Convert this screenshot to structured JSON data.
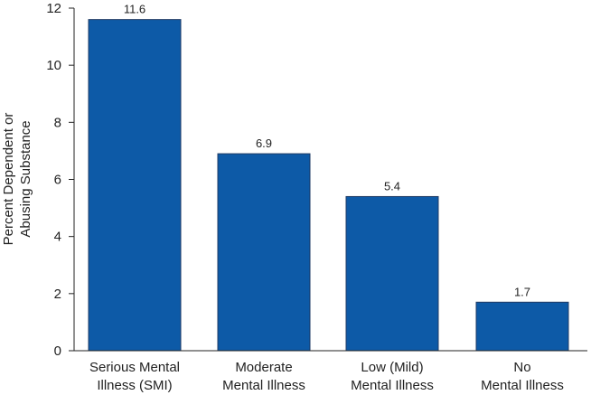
{
  "chart_data": {
    "type": "bar",
    "categories": [
      [
        "Serious Mental",
        "Illness (SMI)"
      ],
      [
        "Moderate",
        "Mental Illness"
      ],
      [
        "Low (Mild)",
        "Mental Illness"
      ],
      [
        "No",
        "Mental Illness"
      ]
    ],
    "values": [
      11.6,
      6.9,
      5.4,
      1.7
    ],
    "data_labels": [
      "11.6",
      "6.9",
      "5.4",
      "1.7"
    ],
    "title": "",
    "xlabel": "",
    "ylabel": [
      "Percent Dependent or",
      "Abusing Substance"
    ],
    "ylim": [
      0,
      12
    ],
    "yticks": [
      0,
      2,
      4,
      6,
      8,
      10,
      12
    ],
    "grid": false,
    "legend": "none",
    "bar_color": "#0d5aa7",
    "bar_border_color": "#1f3b64"
  }
}
